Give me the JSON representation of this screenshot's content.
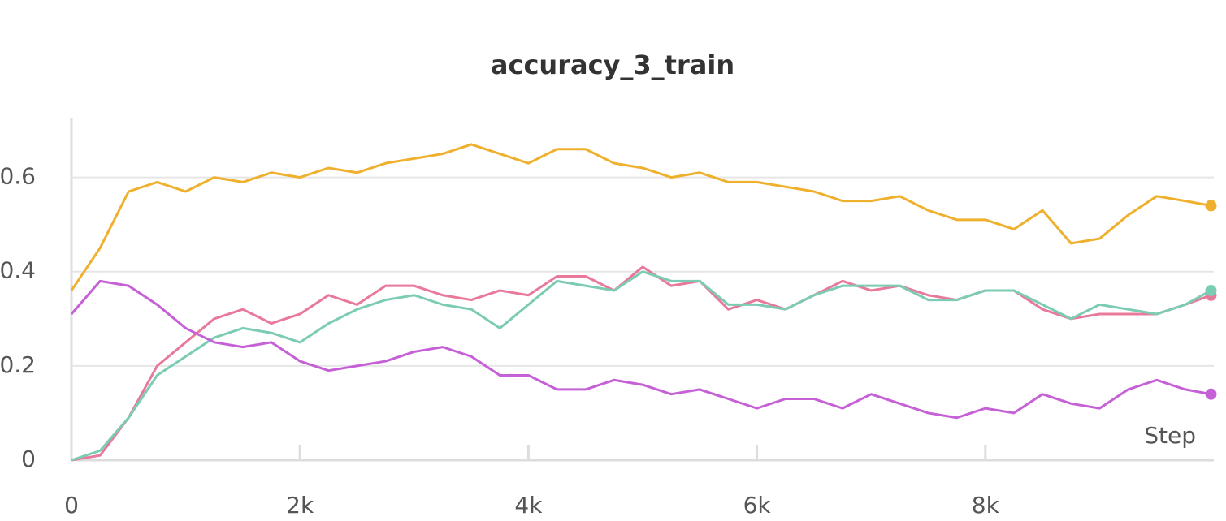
{
  "chart_data": {
    "type": "line",
    "title": "accuracy_3_train",
    "x_label": "Step",
    "x": [
      0,
      250,
      500,
      750,
      1000,
      1250,
      1500,
      1750,
      2000,
      2250,
      2500,
      2750,
      3000,
      3250,
      3500,
      3750,
      4000,
      4250,
      4500,
      4750,
      5000,
      5250,
      5500,
      5750,
      6000,
      6250,
      6500,
      6750,
      7000,
      7250,
      7500,
      7750,
      8000,
      8250,
      8500,
      8750,
      9000,
      9250,
      9500,
      9750,
      9975
    ],
    "series": [
      {
        "color": "#efb02d",
        "values": [
          0.36,
          0.45,
          0.57,
          0.59,
          0.57,
          0.6,
          0.59,
          0.61,
          0.6,
          0.62,
          0.61,
          0.63,
          0.64,
          0.65,
          0.67,
          0.65,
          0.63,
          0.66,
          0.66,
          0.63,
          0.62,
          0.6,
          0.61,
          0.59,
          0.59,
          0.58,
          0.57,
          0.55,
          0.55,
          0.56,
          0.53,
          0.51,
          0.51,
          0.49,
          0.53,
          0.46,
          0.47,
          0.52,
          0.56,
          0.55,
          0.54
        ]
      },
      {
        "color": "#e8799a",
        "values": [
          0,
          0.01,
          0.09,
          0.2,
          0.25,
          0.3,
          0.32,
          0.29,
          0.31,
          0.35,
          0.33,
          0.37,
          0.37,
          0.35,
          0.34,
          0.36,
          0.35,
          0.39,
          0.39,
          0.36,
          0.41,
          0.37,
          0.38,
          0.32,
          0.34,
          0.32,
          0.35,
          0.38,
          0.36,
          0.37,
          0.35,
          0.34,
          0.36,
          0.36,
          0.32,
          0.3,
          0.31,
          0.31,
          0.31,
          0.33,
          0.35
        ]
      },
      {
        "color": "#7ccbb5",
        "values": [
          0,
          0.02,
          0.09,
          0.18,
          0.22,
          0.26,
          0.28,
          0.27,
          0.25,
          0.29,
          0.32,
          0.34,
          0.35,
          0.33,
          0.32,
          0.28,
          0.33,
          0.38,
          0.37,
          0.36,
          0.4,
          0.38,
          0.38,
          0.33,
          0.33,
          0.32,
          0.35,
          0.37,
          0.37,
          0.37,
          0.34,
          0.34,
          0.36,
          0.36,
          0.33,
          0.3,
          0.33,
          0.32,
          0.31,
          0.33,
          0.36
        ]
      },
      {
        "color": "#c660d6",
        "values": [
          0.31,
          0.38,
          0.37,
          0.33,
          0.28,
          0.25,
          0.24,
          0.25,
          0.21,
          0.19,
          0.2,
          0.21,
          0.23,
          0.24,
          0.22,
          0.18,
          0.18,
          0.15,
          0.15,
          0.17,
          0.16,
          0.14,
          0.15,
          0.13,
          0.11,
          0.13,
          0.13,
          0.11,
          0.14,
          0.12,
          0.1,
          0.09,
          0.11,
          0.1,
          0.14,
          0.12,
          0.11,
          0.15,
          0.17,
          0.15,
          0.14
        ]
      }
    ],
    "xlim": [
      0,
      10000
    ],
    "ylim": [
      0,
      0.725
    ],
    "xticks": [
      0,
      {
        "value": 2000,
        "label": "2k"
      },
      {
        "value": 4000,
        "label": "4k"
      },
      {
        "value": 6000,
        "label": "6k"
      },
      {
        "value": 8000,
        "label": "8k"
      }
    ],
    "yticks": [
      0,
      0.2,
      0.4,
      0.6
    ],
    "grid": true
  }
}
